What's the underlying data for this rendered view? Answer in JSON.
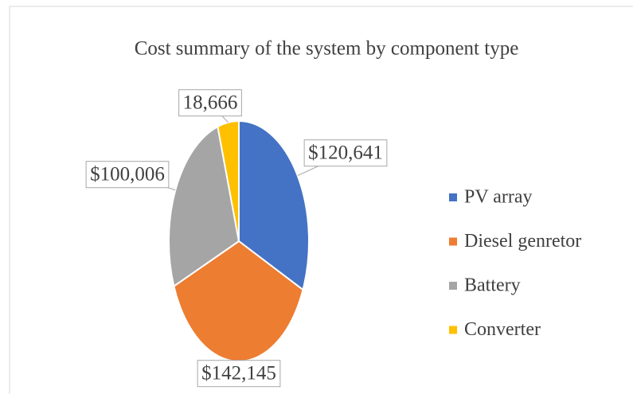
{
  "chart_data": {
    "type": "pie",
    "title": "Cost summary of the system by component type",
    "categories": [
      "PV array",
      "Diesel genretor",
      "Battery",
      "Converter"
    ],
    "values": [
      120641,
      142145,
      100006,
      18666
    ],
    "value_labels": [
      "$120,641",
      "$142,145",
      "$100,006",
      "18,666"
    ],
    "colors": [
      "#4472c4",
      "#ed7d31",
      "#a5a5a5",
      "#ffc000"
    ],
    "legend": "right"
  }
}
